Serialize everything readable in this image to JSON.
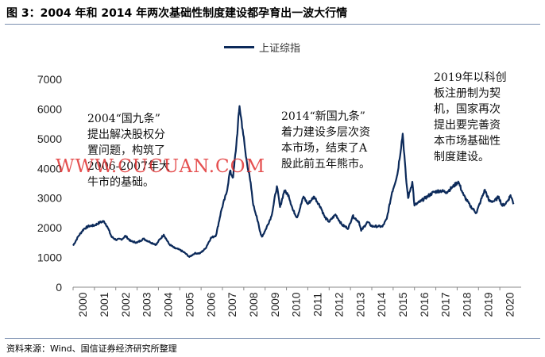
{
  "title": "图 3：2004 年和 2014 年两次基础性制度建设都孕育出一波大行情",
  "source": "资料来源：Wind、国信证券经济研究所整理",
  "watermark": "WWW.CUCUAN.COM",
  "annotations": [
    [
      "2004“国九条”",
      "提出解决股权分",
      "置问题，构筑了",
      "2006-2007年大",
      "牛市的基础。"
    ],
    [
      "2014“新国九条”",
      "着力建设多层次资",
      "本市场，结束了A",
      "股此前五年熊市。"
    ],
    [
      "2019年以科创",
      "板注册制为契",
      "机，国家再次",
      "提出要完善资",
      "本市场基础性",
      "制度建设。"
    ]
  ],
  "colors": {
    "line": "#0c2a5a",
    "axis": "#888888",
    "watermark": "#e02a2a"
  },
  "chart_data": {
    "type": "line",
    "title": "",
    "xlabel": "",
    "ylabel": "",
    "legend": "top-center",
    "grid": false,
    "x_ticks": [
      "2000",
      "2001",
      "2002",
      "2003",
      "2004",
      "2005",
      "2006",
      "2007",
      "2008",
      "2009",
      "2010",
      "2011",
      "2012",
      "2013",
      "2014",
      "2015",
      "2016",
      "2017",
      "2018",
      "2019",
      "2020"
    ],
    "y_ticks": [
      0,
      1000,
      2000,
      3000,
      4000,
      5000,
      6000,
      7000
    ],
    "ylim": [
      0,
      7000
    ],
    "xlim": [
      2000.0,
      2021.0
    ],
    "series": [
      {
        "name": "上证综指",
        "points": [
          [
            2000.0,
            1400
          ],
          [
            2000.25,
            1720
          ],
          [
            2000.5,
            1960
          ],
          [
            2000.75,
            2060
          ],
          [
            2001.0,
            2080
          ],
          [
            2001.25,
            2180
          ],
          [
            2001.45,
            2220
          ],
          [
            2001.6,
            2050
          ],
          [
            2001.8,
            1700
          ],
          [
            2002.0,
            1600
          ],
          [
            2002.3,
            1620
          ],
          [
            2002.45,
            1730
          ],
          [
            2002.7,
            1550
          ],
          [
            2003.0,
            1500
          ],
          [
            2003.3,
            1630
          ],
          [
            2003.6,
            1520
          ],
          [
            2003.9,
            1430
          ],
          [
            2004.0,
            1550
          ],
          [
            2004.25,
            1770
          ],
          [
            2004.5,
            1450
          ],
          [
            2004.75,
            1320
          ],
          [
            2005.0,
            1260
          ],
          [
            2005.25,
            1150
          ],
          [
            2005.45,
            1020
          ],
          [
            2005.7,
            1140
          ],
          [
            2005.95,
            1140
          ],
          [
            2006.2,
            1300
          ],
          [
            2006.45,
            1650
          ],
          [
            2006.7,
            1750
          ],
          [
            2006.95,
            2600
          ],
          [
            2007.2,
            3200
          ],
          [
            2007.35,
            3900
          ],
          [
            2007.5,
            3700
          ],
          [
            2007.65,
            4800
          ],
          [
            2007.8,
            6100
          ],
          [
            2007.95,
            5300
          ],
          [
            2008.1,
            4400
          ],
          [
            2008.3,
            3600
          ],
          [
            2008.45,
            2750
          ],
          [
            2008.6,
            2400
          ],
          [
            2008.75,
            1900
          ],
          [
            2008.85,
            1700
          ],
          [
            2009.0,
            1900
          ],
          [
            2009.3,
            2400
          ],
          [
            2009.55,
            3400
          ],
          [
            2009.7,
            2700
          ],
          [
            2009.9,
            3250
          ],
          [
            2010.1,
            3100
          ],
          [
            2010.3,
            2600
          ],
          [
            2010.5,
            2350
          ],
          [
            2010.8,
            3050
          ],
          [
            2011.0,
            2800
          ],
          [
            2011.3,
            3050
          ],
          [
            2011.6,
            2700
          ],
          [
            2011.8,
            2350
          ],
          [
            2012.0,
            2200
          ],
          [
            2012.3,
            2450
          ],
          [
            2012.6,
            2100
          ],
          [
            2012.9,
            1980
          ],
          [
            2013.1,
            2400
          ],
          [
            2013.4,
            2200
          ],
          [
            2013.5,
            1900
          ],
          [
            2013.8,
            2200
          ],
          [
            2014.0,
            2050
          ],
          [
            2014.3,
            2050
          ],
          [
            2014.5,
            2040
          ],
          [
            2014.7,
            2300
          ],
          [
            2014.95,
            3200
          ],
          [
            2015.2,
            3800
          ],
          [
            2015.45,
            5170
          ],
          [
            2015.6,
            3700
          ],
          [
            2015.7,
            3000
          ],
          [
            2015.9,
            3550
          ],
          [
            2016.0,
            2750
          ],
          [
            2016.3,
            2900
          ],
          [
            2016.6,
            3050
          ],
          [
            2016.9,
            3200
          ],
          [
            2017.2,
            3250
          ],
          [
            2017.5,
            3200
          ],
          [
            2017.8,
            3380
          ],
          [
            2018.05,
            3560
          ],
          [
            2018.3,
            3100
          ],
          [
            2018.6,
            2750
          ],
          [
            2018.9,
            2500
          ],
          [
            2019.1,
            2900
          ],
          [
            2019.3,
            3280
          ],
          [
            2019.5,
            2900
          ],
          [
            2019.75,
            2900
          ],
          [
            2019.95,
            3050
          ],
          [
            2020.1,
            2750
          ],
          [
            2020.25,
            2800
          ],
          [
            2020.4,
            2950
          ],
          [
            2020.5,
            3100
          ],
          [
            2020.65,
            2800
          ]
        ]
      }
    ]
  }
}
